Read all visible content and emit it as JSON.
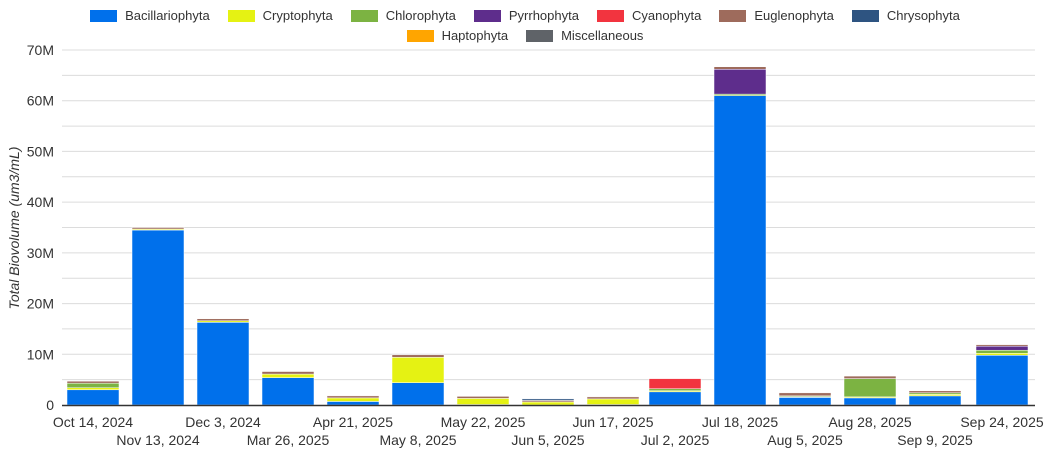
{
  "chart_data": {
    "type": "bar",
    "stacked": true,
    "title": "",
    "xlabel": "",
    "ylabel": "Total Biovolume (um3/mL)",
    "ylim": [
      0,
      70000000
    ],
    "yticks": [
      "0",
      "10M",
      "20M",
      "30M",
      "40M",
      "50M",
      "60M",
      "70M"
    ],
    "grid": true,
    "legend_position": "top",
    "categories": [
      "Oct 14, 2024",
      "Nov 13, 2024",
      "Dec 3, 2024",
      "Mar 26, 2025",
      "Apr 21, 2025",
      "May 8, 2025",
      "May 22, 2025",
      "Jun 5, 2025",
      "Jun 17, 2025",
      "Jul 2, 2025",
      "Jul 18, 2025",
      "Aug 5, 2025",
      "Aug 28, 2025",
      "Sep 9, 2025",
      "Sep 24, 2025"
    ],
    "series": [
      {
        "name": "Bacillariophyta",
        "color": "#0070EB",
        "values": [
          3000000,
          34500000,
          16300000,
          5400000,
          700000,
          4400000,
          100000,
          0,
          100000,
          2600000,
          61000000,
          1500000,
          1400000,
          1800000,
          9800000
        ]
      },
      {
        "name": "Cryptophyta",
        "color": "#E5F213",
        "values": [
          400000,
          200000,
          300000,
          700000,
          700000,
          5000000,
          1200000,
          600000,
          1100000,
          200000,
          0,
          100000,
          200000,
          300000,
          400000
        ]
      },
      {
        "name": "Chlorophyta",
        "color": "#7CB342",
        "values": [
          900000,
          0,
          0,
          0,
          0,
          0,
          0,
          0,
          0,
          400000,
          300000,
          200000,
          3600000,
          300000,
          600000
        ]
      },
      {
        "name": "Pyrrhophyta",
        "color": "#5E2D8C",
        "values": [
          0,
          0,
          0,
          0,
          0,
          0,
          0,
          0,
          0,
          0,
          4900000,
          0,
          0,
          0,
          800000
        ]
      },
      {
        "name": "Cyanophyta",
        "color": "#F2343F",
        "values": [
          0,
          0,
          0,
          0,
          0,
          0,
          0,
          0,
          0,
          2000000,
          0,
          0,
          0,
          0,
          0
        ]
      },
      {
        "name": "Euglenophyta",
        "color": "#9E6B5C",
        "values": [
          400000,
          300000,
          400000,
          500000,
          400000,
          500000,
          400000,
          300000,
          400000,
          0,
          500000,
          600000,
          500000,
          400000,
          300000
        ]
      },
      {
        "name": "Chrysophyta",
        "color": "#2E5481",
        "values": [
          0,
          0,
          0,
          0,
          0,
          0,
          0,
          300000,
          0,
          0,
          0,
          0,
          0,
          0,
          0
        ]
      },
      {
        "name": "Haptophyta",
        "color": "#FFA500",
        "values": [
          0,
          0,
          0,
          0,
          0,
          0,
          0,
          0,
          0,
          0,
          0,
          0,
          0,
          0,
          0
        ]
      },
      {
        "name": "Miscellaneous",
        "color": "#5F6368",
        "values": [
          0,
          0,
          0,
          0,
          0,
          0,
          0,
          0,
          0,
          0,
          0,
          0,
          0,
          0,
          0
        ]
      }
    ]
  },
  "legend": {
    "row1": [
      {
        "label": "Bacillariophyta",
        "color": "#0070EB"
      },
      {
        "label": "Cryptophyta",
        "color": "#E5F213"
      },
      {
        "label": "Chlorophyta",
        "color": "#7CB342"
      },
      {
        "label": "Pyrrhophyta",
        "color": "#5E2D8C"
      },
      {
        "label": "Cyanophyta",
        "color": "#F2343F"
      },
      {
        "label": "Euglenophyta",
        "color": "#9E6B5C"
      },
      {
        "label": "Chrysophyta",
        "color": "#2E5481"
      }
    ],
    "row2": [
      {
        "label": "Haptophyta",
        "color": "#FFA500"
      },
      {
        "label": "Miscellaneous",
        "color": "#5F6368"
      }
    ]
  }
}
